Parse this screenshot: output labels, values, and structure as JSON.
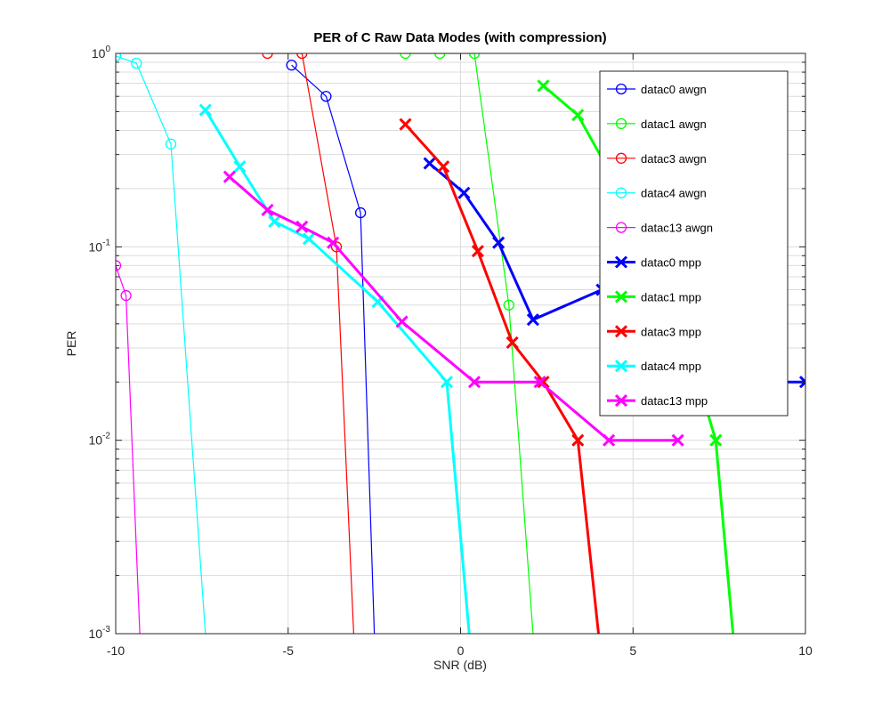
{
  "chart_data": {
    "type": "line",
    "title": "PER of C Raw Data Modes (with compression)",
    "xlabel": "SNR (dB)",
    "ylabel": "PER",
    "xlim": [
      -10,
      10
    ],
    "ylim": [
      0.001,
      1
    ],
    "yscale": "log",
    "grid": true,
    "legend_position": "top-right",
    "x_ticks": [
      {
        "value": -10,
        "label": "-10"
      },
      {
        "value": -5,
        "label": "-5"
      },
      {
        "value": 0,
        "label": "0"
      },
      {
        "value": 5,
        "label": "5"
      },
      {
        "value": 10,
        "label": "10"
      }
    ],
    "y_ticks": [
      {
        "value": 0.001,
        "base": "10",
        "exp": "-3"
      },
      {
        "value": 0.01,
        "base": "10",
        "exp": "-2"
      },
      {
        "value": 0.1,
        "base": "10",
        "exp": "-1"
      },
      {
        "value": 1,
        "base": "10",
        "exp": "0"
      }
    ],
    "series": [
      {
        "name": "datac0 awgn",
        "color": "#0000ff",
        "marker": "circle",
        "width": 1.2,
        "x": [
          -4.9,
          -3.9,
          -2.9,
          -2.5
        ],
        "y": [
          0.87,
          0.6,
          0.15,
          0.001
        ]
      },
      {
        "name": "datac1 awgn",
        "color": "#00ff00",
        "marker": "circle",
        "width": 1.2,
        "x": [
          -1.6,
          -0.6,
          0.4,
          1.4,
          2.1
        ],
        "y": [
          1.0,
          1.0,
          1.0,
          0.05,
          0.001
        ]
      },
      {
        "name": "datac3 awgn",
        "color": "#ff0000",
        "marker": "circle",
        "width": 1.2,
        "x": [
          -5.6,
          -4.6,
          -3.6,
          -3.1
        ],
        "y": [
          1.0,
          1.0,
          0.1,
          0.001
        ]
      },
      {
        "name": "datac4 awgn",
        "color": "#00ffff",
        "marker": "circle",
        "width": 1.2,
        "x": [
          -10.0,
          -9.4,
          -8.4,
          -7.4
        ],
        "y": [
          0.97,
          0.89,
          0.34,
          0.001
        ]
      },
      {
        "name": "datac13 awgn",
        "color": "#ff00ff",
        "marker": "circle",
        "width": 1.2,
        "x": [
          -10.0,
          -9.7,
          -9.3
        ],
        "y": [
          0.08,
          0.056,
          0.001
        ]
      },
      {
        "name": "datac0 mpp",
        "color": "#0000ff",
        "marker": "x",
        "width": 3,
        "x": [
          -0.9,
          0.1,
          1.1,
          2.1,
          4.1,
          6.0,
          8.0,
          10.0
        ],
        "y": [
          0.27,
          0.19,
          0.105,
          0.042,
          0.06,
          0.03,
          0.02,
          0.02
        ]
      },
      {
        "name": "datac1 mpp",
        "color": "#00ff00",
        "marker": "x",
        "width": 3,
        "x": [
          2.4,
          3.4,
          4.4,
          5.4,
          6.4,
          7.4,
          7.9
        ],
        "y": [
          0.68,
          0.48,
          0.23,
          0.12,
          0.04,
          0.01,
          0.001
        ]
      },
      {
        "name": "datac3 mpp",
        "color": "#ff0000",
        "marker": "x",
        "width": 3,
        "x": [
          -1.6,
          -0.5,
          0.5,
          1.5,
          2.4,
          3.4,
          4.0
        ],
        "y": [
          0.43,
          0.26,
          0.095,
          0.032,
          0.02,
          0.01,
          0.001
        ]
      },
      {
        "name": "datac4 mpp",
        "color": "#00ffff",
        "marker": "x",
        "width": 3,
        "x": [
          -7.4,
          -6.4,
          -5.4,
          -4.4,
          -2.4,
          -0.4,
          0.25
        ],
        "y": [
          0.51,
          0.26,
          0.135,
          0.11,
          0.052,
          0.02,
          0.001
        ]
      },
      {
        "name": "datac13 mpp",
        "color": "#ff00ff",
        "marker": "x",
        "width": 3,
        "x": [
          -6.7,
          -5.6,
          -4.6,
          -3.7,
          -1.7,
          0.4,
          2.3,
          4.3,
          6.3
        ],
        "y": [
          0.23,
          0.155,
          0.127,
          0.105,
          0.041,
          0.02,
          0.02,
          0.01,
          0.01
        ]
      }
    ]
  }
}
